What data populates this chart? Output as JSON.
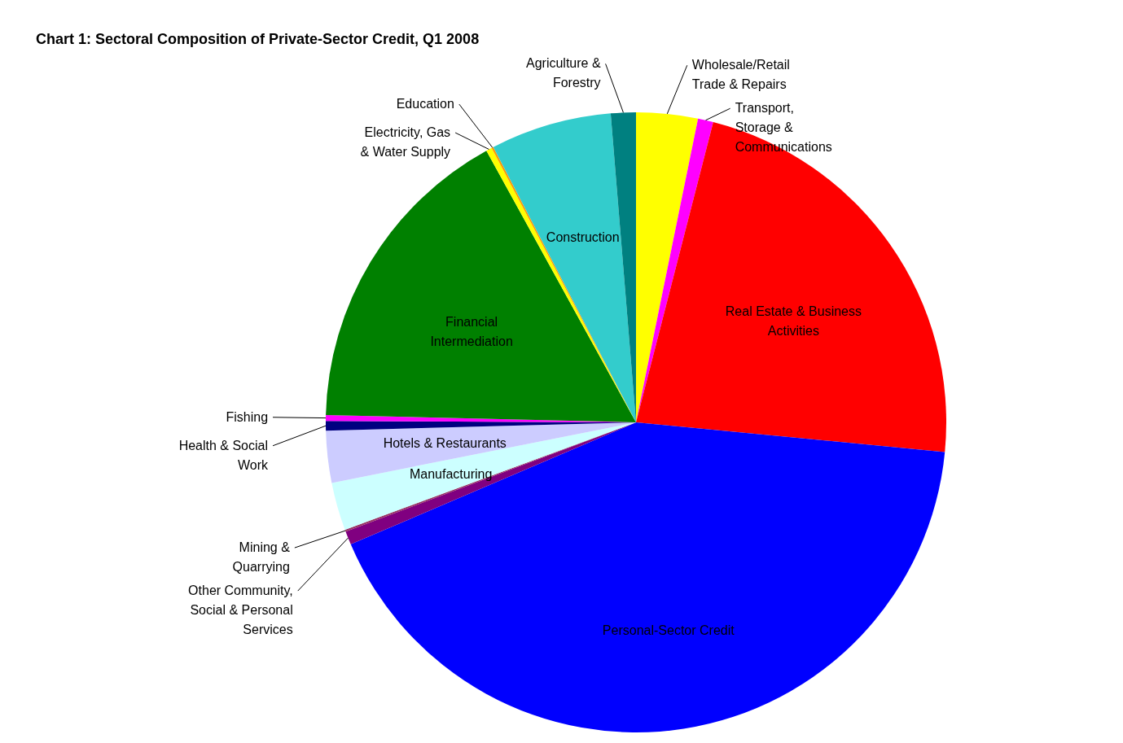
{
  "chart_data": {
    "type": "pie",
    "title": "Chart 1: Sectoral Composition of Private-Sector Credit, Q1 2008",
    "categories": [
      "Wholesale/Retail Trade & Repairs",
      "Transport, Storage & Communications",
      "Real Estate & Business Activities",
      "Personal-Sector Credit",
      "Other Community, Social & Personal Services",
      "Mining & Quarrying",
      "Manufacturing",
      "Hotels & Restaurants",
      "Health & Social Work",
      "Fishing",
      "Financial Intermediation",
      "Electricity, Gas & Water Supply",
      "Education",
      "Construction",
      "Agriculture & Forestry"
    ],
    "values": [
      3.2,
      0.8,
      22.5,
      42.0,
      0.7,
      0.1,
      2.5,
      2.7,
      0.5,
      0.3,
      16.6,
      0.3,
      0.1,
      6.3,
      1.3
    ],
    "colors": [
      "#ffff00",
      "#ff00ff",
      "#ff0000",
      "#0000ff",
      "#800080",
      "#993366",
      "#ccffff",
      "#ccccff",
      "#000080",
      "#ff00ff",
      "#008000",
      "#ffff00",
      "#ff9900",
      "#33cccc",
      "#008080"
    ]
  }
}
